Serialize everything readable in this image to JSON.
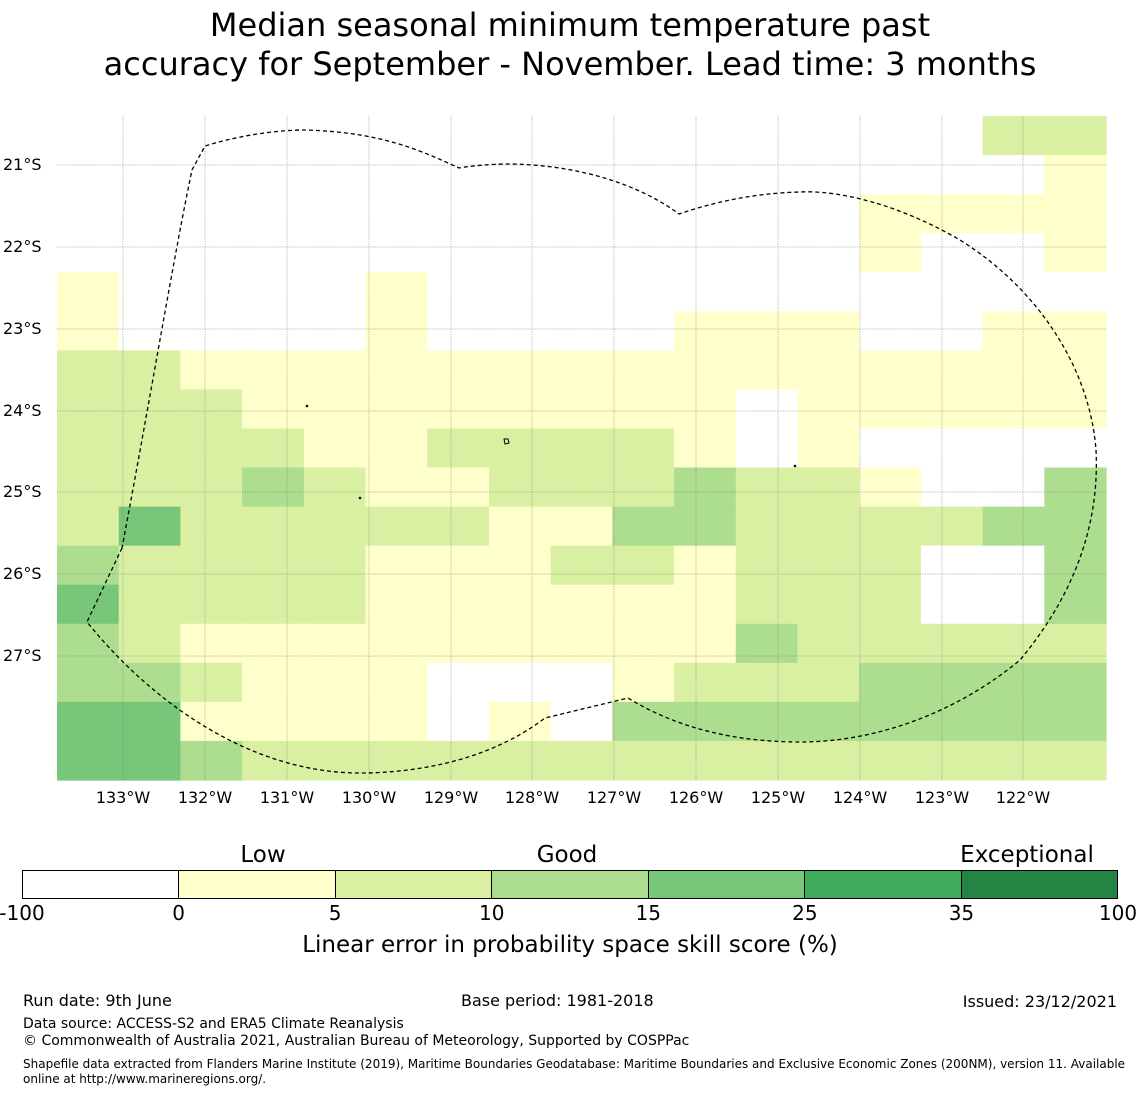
{
  "title_line1": "Median seasonal minimum temperature past",
  "title_line2": "accuracy for September - November. Lead time: 3 months",
  "map": {
    "lat_labels": [
      "21°S",
      "22°S",
      "23°S",
      "24°S",
      "25°S",
      "26°S",
      "27°S"
    ],
    "lon_labels": [
      "133°W",
      "132°W",
      "131°W",
      "130°W",
      "129°W",
      "128°W",
      "127°W",
      "126°W",
      "125°W",
      "124°W",
      "123°W",
      "122°W"
    ],
    "class_colors": [
      "#ffffff",
      "#ffffcc",
      "#d9f0a3",
      "#addd8e",
      "#78c679",
      "#41ab5d",
      "#238443"
    ],
    "grid_rows": [
      "00000000000000022",
      "00000000000000001",
      "00000000000001111",
      "00000000000001001",
      "10000100000000000",
      "10000100001110011",
      "22111111111111111",
      "22211111111011111",
      "22221122221010000",
      "22232112223221003",
      "24222221133222233",
      "32222111221222003",
      "42222111111222003",
      "32111111111322222",
      "33211100012223333",
      "44111101033333333",
      "44322222222222222"
    ]
  },
  "legend": {
    "header_low": "Low",
    "header_good": "Good",
    "header_exceptional": "Exceptional",
    "ticks": [
      "-100",
      "0",
      "5",
      "10",
      "15",
      "25",
      "35",
      "100"
    ],
    "label": "Linear error in probability space skill score (%)"
  },
  "footer": {
    "run_date": "Run date: 9th June",
    "base_period": "Base period: 1981-2018",
    "issued": "Issued: 23/12/2021",
    "data_source": "Data source: ACCESS-S2 and ERA5 Climate Reanalysis",
    "copyright": "© Commonwealth of Australia 2021, Australian Bureau of Meteorology, Supported by COSPPac",
    "shapefile_credit": "Shapefile data extracted from Flanders Marine Institute (2019), Maritime Boundaries Geodatabase: Maritime Boundaries and Exclusive Economic Zones (200NM), version 11. Available online at http://www.marineregions.org/."
  }
}
